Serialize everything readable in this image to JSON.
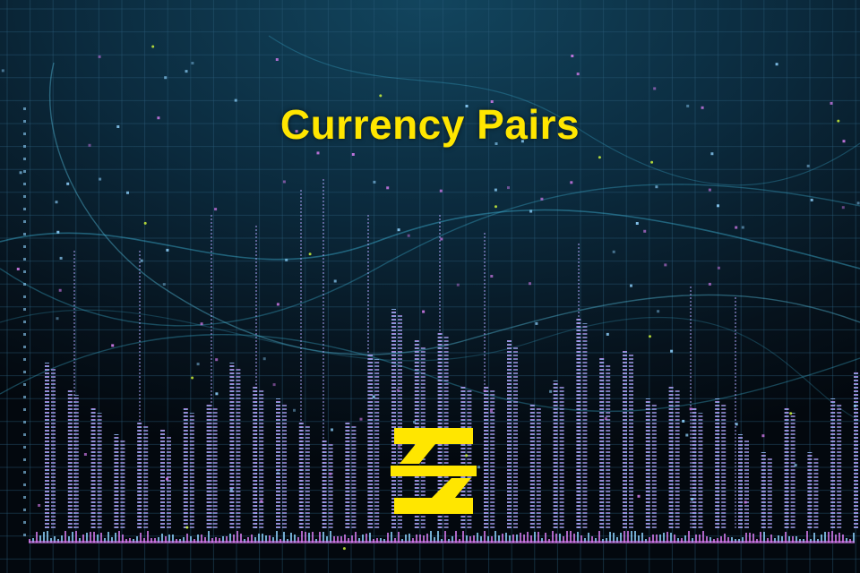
{
  "headline": "Currency Pairs",
  "logo": {
    "icon": "brand-z-logo-icon",
    "color": "#ffe600"
  },
  "colors": {
    "accent": "#ffe600",
    "background": "#0b2a3d",
    "grid": "#2a5a78",
    "bar_pink": "#d77cf0",
    "bar_blue": "#8fd3ff",
    "wave": "#3fb4d6"
  }
}
